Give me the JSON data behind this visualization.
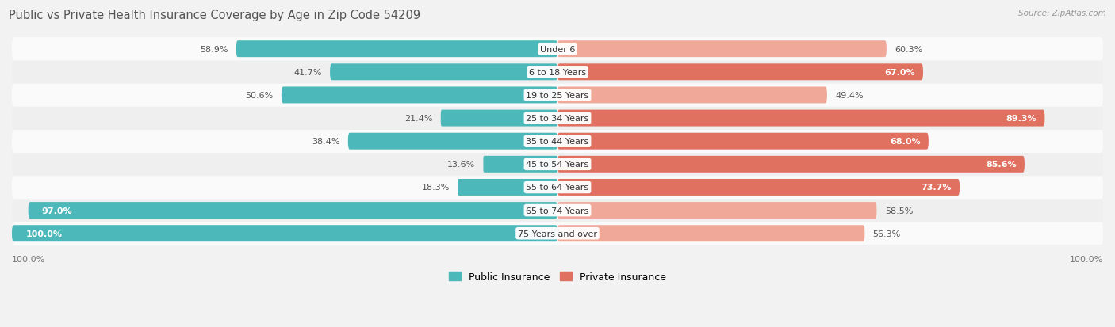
{
  "title": "Public vs Private Health Insurance Coverage by Age in Zip Code 54209",
  "source": "Source: ZipAtlas.com",
  "categories": [
    "Under 6",
    "6 to 18 Years",
    "19 to 25 Years",
    "25 to 34 Years",
    "35 to 44 Years",
    "45 to 54 Years",
    "55 to 64 Years",
    "65 to 74 Years",
    "75 Years and over"
  ],
  "public_values": [
    58.9,
    41.7,
    50.6,
    21.4,
    38.4,
    13.6,
    18.3,
    97.0,
    100.0
  ],
  "private_values": [
    60.3,
    67.0,
    49.4,
    89.3,
    68.0,
    85.6,
    73.7,
    58.5,
    56.3
  ],
  "public_color": "#4db8ba",
  "private_color_dark": "#e07060",
  "private_color_light": "#f0a898",
  "private_threshold": 65.0,
  "bg_color": "#f2f2f2",
  "row_bg_colors": [
    "#fafafa",
    "#efefef"
  ],
  "title_color": "#555555",
  "source_color": "#999999",
  "label_dark": "#555555",
  "label_white": "#ffffff",
  "white_label_threshold_pub": 90.0,
  "white_label_threshold_priv": 65.0,
  "legend_public": "Public Insurance",
  "legend_private": "Private Insurance",
  "axis_label_left": "100.0%",
  "axis_label_right": "100.0%"
}
